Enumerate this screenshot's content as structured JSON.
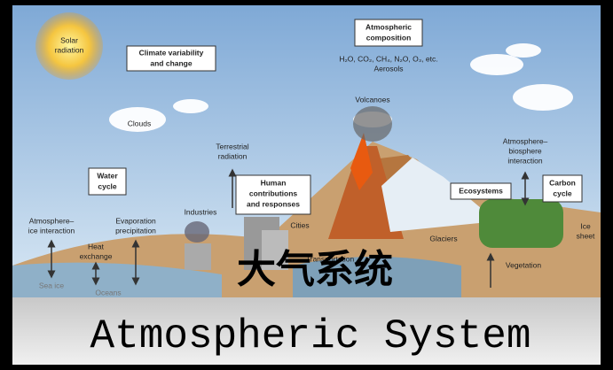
{
  "diagram": {
    "solar_radiation": [
      "Solar",
      "radiation"
    ],
    "climate_variability": [
      "Climate variability",
      "and change"
    ],
    "atmospheric_composition": [
      "Atmospheric",
      "composition"
    ],
    "composition_detail": [
      "H₂O, CO₂, CH₄, N₂O, O₃, etc.",
      "Aerosols"
    ],
    "volcanoes": "Volcanoes",
    "clouds": "Clouds",
    "terrestrial_radiation": [
      "Terrestrial",
      "radiation"
    ],
    "water_cycle": [
      "Water",
      "cycle"
    ],
    "atmosphere_ice": [
      "Atmosphere–",
      "ice interaction"
    ],
    "heat_exchange": [
      "Heat",
      "exchange"
    ],
    "evaporation": [
      "Evaporation",
      "precipitation"
    ],
    "industries": "Industries",
    "human_contributions": [
      "Human",
      "contributions",
      "and responses"
    ],
    "cities": "Cities",
    "transportation": "Transportation",
    "glaciers": "Glaciers",
    "atmosphere_biosphere": [
      "Atmosphere–",
      "biosphere",
      "interaction"
    ],
    "ecosystems": "Ecosystems",
    "carbon_cycle": [
      "Carbon",
      "cycle"
    ],
    "ice_sheet": [
      "Ice",
      "sheet"
    ],
    "vegetation": "Vegetation",
    "sea_ice": "Sea ice",
    "oceans": "Oceans"
  },
  "overlay": {
    "chinese_title": "大气系统",
    "english_title": "Atmospheric System"
  }
}
